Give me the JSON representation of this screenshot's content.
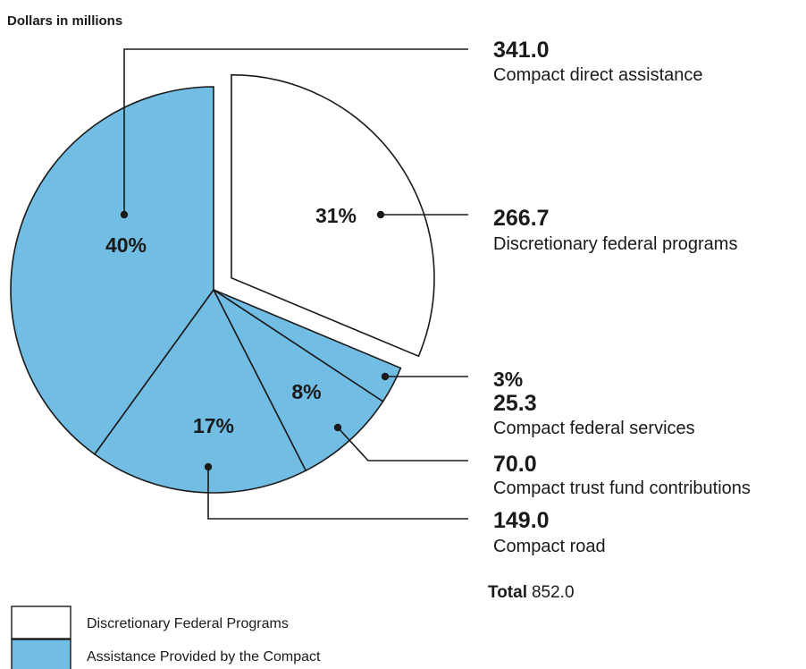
{
  "chart_data": {
    "type": "pie",
    "unit_label": "Dollars in millions",
    "slices": [
      {
        "value": 266.7,
        "percent": "31%",
        "value_label": "266.7",
        "name": "Discretionary federal programs",
        "group": "discretionary",
        "exploded": true
      },
      {
        "value": 25.3,
        "percent": "3%",
        "value_label": "25.3",
        "name": "Compact federal services",
        "group": "compact"
      },
      {
        "value": 70.0,
        "percent": "8%",
        "value_label": "70.0",
        "name": "Compact trust fund contributions",
        "group": "compact"
      },
      {
        "value": 149.0,
        "percent": "17%",
        "value_label": "149.0",
        "name": "Compact road",
        "group": "compact"
      },
      {
        "value": 341.0,
        "percent": "40%",
        "value_label": "341.0",
        "name": "Compact direct assistance",
        "group": "compact"
      }
    ],
    "total_label": "Total",
    "total_value": "852.0",
    "legend": [
      {
        "label": "Discretionary Federal Programs",
        "color": "#ffffff",
        "group": "discretionary"
      },
      {
        "label": "Assistance Provided by the Compact",
        "color": "#72bde3",
        "group": "compact"
      }
    ],
    "colors": {
      "compact": "#72bde3",
      "discretionary": "#ffffff",
      "edge": "#1a1a1a"
    }
  }
}
